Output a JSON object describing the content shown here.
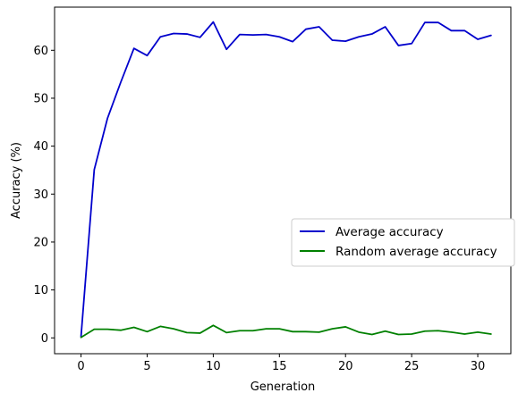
{
  "chart_data": {
    "type": "line",
    "xlabel": "Generation",
    "ylabel": "Accuracy (%)",
    "xlim": [
      -2,
      32.5
    ],
    "ylim": [
      -3.3,
      69
    ],
    "x_ticks": [
      0,
      5,
      10,
      15,
      20,
      25,
      30
    ],
    "y_ticks": [
      0,
      10,
      20,
      30,
      40,
      50,
      60
    ],
    "grid": false,
    "legend_position": "center-right",
    "x": [
      0,
      1,
      2,
      3,
      4,
      5,
      6,
      7,
      8,
      9,
      10,
      11,
      12,
      13,
      14,
      15,
      16,
      17,
      18,
      19,
      20,
      21,
      22,
      23,
      24,
      25,
      26,
      27,
      28,
      29,
      30,
      31
    ],
    "series": [
      {
        "name": "Average accuracy",
        "color": "#0000cc",
        "values": [
          0.3,
          35.1,
          45.8,
          53.3,
          60.4,
          58.9,
          62.8,
          63.5,
          63.4,
          62.7,
          65.9,
          60.2,
          63.3,
          63.2,
          63.3,
          62.8,
          61.8,
          64.4,
          64.9,
          62.1,
          61.9,
          62.8,
          63.4,
          64.9,
          61.0,
          61.4,
          65.8,
          65.8,
          64.1,
          64.1,
          62.3,
          63.1
        ]
      },
      {
        "name": "Random average accuracy",
        "color": "#008000",
        "values": [
          0.1,
          1.8,
          1.8,
          1.6,
          2.2,
          1.3,
          2.4,
          1.9,
          1.1,
          1.0,
          2.6,
          1.1,
          1.5,
          1.5,
          1.9,
          1.9,
          1.3,
          1.3,
          1.2,
          1.9,
          2.3,
          1.2,
          0.7,
          1.4,
          0.7,
          0.8,
          1.4,
          1.5,
          1.2,
          0.8,
          1.2,
          0.8
        ]
      }
    ]
  }
}
